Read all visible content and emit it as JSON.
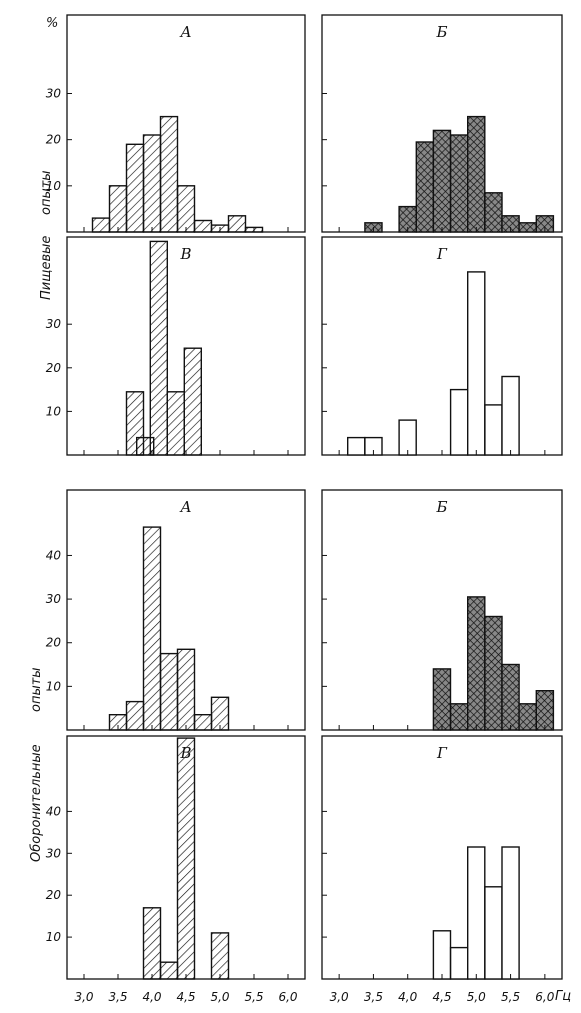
{
  "figure": {
    "percent_label": "%",
    "unit_label": "Гц",
    "group_labels": {
      "feeding": [
        "Пищевые",
        "опыты"
      ],
      "defensive": [
        "Оборонительные",
        "опыты"
      ]
    }
  },
  "chart_data": [
    {
      "type": "bar",
      "group": "Пищевые опыты",
      "panel": "А",
      "pattern": "hatch",
      "x": [
        3.25,
        3.5,
        3.75,
        4.0,
        4.25,
        4.5,
        4.75,
        5.0,
        5.25,
        5.5
      ],
      "values": [
        3,
        10,
        19,
        21,
        25,
        10,
        2.5,
        1.5,
        3.5,
        1
      ],
      "ylim": [
        0,
        47
      ],
      "yticks": [
        10,
        20,
        30
      ],
      "xlim": [
        2.75,
        6.25
      ]
    },
    {
      "type": "bar",
      "group": "Пищевые опыты",
      "panel": "Б",
      "pattern": "crosshatch",
      "x": [
        3.5,
        4.0,
        4.25,
        4.5,
        4.75,
        5.0,
        5.25,
        5.5,
        5.75,
        6.0
      ],
      "values": [
        2,
        5.5,
        19.5,
        22,
        21,
        25,
        8.5,
        3.5,
        2,
        3.5
      ],
      "ylim": [
        0,
        47
      ],
      "yticks": [
        10,
        20,
        30
      ],
      "xlim": [
        2.75,
        6.25
      ]
    },
    {
      "type": "bar",
      "group": "Пищевые опыты",
      "panel": "В",
      "pattern": "hatch",
      "x": [
        3.75,
        3.9,
        4.1,
        4.35,
        4.6
      ],
      "values": [
        14.5,
        4,
        49,
        14.5,
        24.5
      ],
      "ylim": [
        0,
        50
      ],
      "yticks": [
        10,
        20,
        30
      ],
      "xlim": [
        2.75,
        6.25
      ]
    },
    {
      "type": "bar",
      "group": "Пищевые опыты",
      "panel": "Г",
      "pattern": "empty",
      "x": [
        3.25,
        3.5,
        4.0,
        4.75,
        5.0,
        5.25,
        5.5
      ],
      "values": [
        4,
        4,
        8,
        15,
        42,
        11.5,
        18
      ],
      "ylim": [
        0,
        50
      ],
      "yticks": [
        10,
        20,
        30
      ],
      "xlim": [
        2.75,
        6.25
      ]
    },
    {
      "type": "bar",
      "group": "Оборонительные опыты",
      "panel": "А",
      "pattern": "hatch",
      "x": [
        3.5,
        3.75,
        4.0,
        4.25,
        4.5,
        4.75,
        5.0
      ],
      "values": [
        3.5,
        6.5,
        46.5,
        17.5,
        18.5,
        3.5,
        7.5
      ],
      "ylim": [
        0,
        55
      ],
      "yticks": [
        10,
        20,
        30,
        40
      ],
      "xlim": [
        2.75,
        6.25
      ]
    },
    {
      "type": "bar",
      "group": "Оборонительные опыты",
      "panel": "Б",
      "pattern": "crosshatch",
      "x": [
        4.5,
        4.75,
        5.0,
        5.25,
        5.5,
        5.75,
        6.0
      ],
      "values": [
        14,
        6,
        30.5,
        26,
        15,
        6,
        9
      ],
      "ylim": [
        0,
        55
      ],
      "yticks": [
        10,
        20,
        30,
        40
      ],
      "xlim": [
        2.75,
        6.25
      ]
    },
    {
      "type": "bar",
      "group": "Оборонительные опыты",
      "panel": "В",
      "pattern": "hatch",
      "x": [
        4.0,
        4.25,
        4.5,
        5.0
      ],
      "values": [
        17,
        4,
        57.5,
        11
      ],
      "ylim": [
        0,
        58
      ],
      "yticks": [
        10,
        20,
        30,
        40
      ],
      "xlim": [
        2.75,
        6.25
      ],
      "xticks": [
        "3,0",
        "3,5",
        "4,0",
        "4,5",
        "5,0",
        "5,5",
        "6,0"
      ]
    },
    {
      "type": "bar",
      "group": "Оборонительные опыты",
      "panel": "Г",
      "pattern": "empty",
      "x": [
        4.5,
        4.75,
        5.0,
        5.25,
        5.5
      ],
      "values": [
        11.5,
        7.5,
        31.5,
        22,
        31.5
      ],
      "ylim": [
        0,
        58
      ],
      "yticks": [
        10,
        20,
        30,
        40
      ],
      "xlim": [
        2.75,
        6.25
      ],
      "xticks": [
        "3,0",
        "3,5",
        "4,0",
        "4,5",
        "5,0",
        "5,5",
        "6,0"
      ]
    }
  ]
}
